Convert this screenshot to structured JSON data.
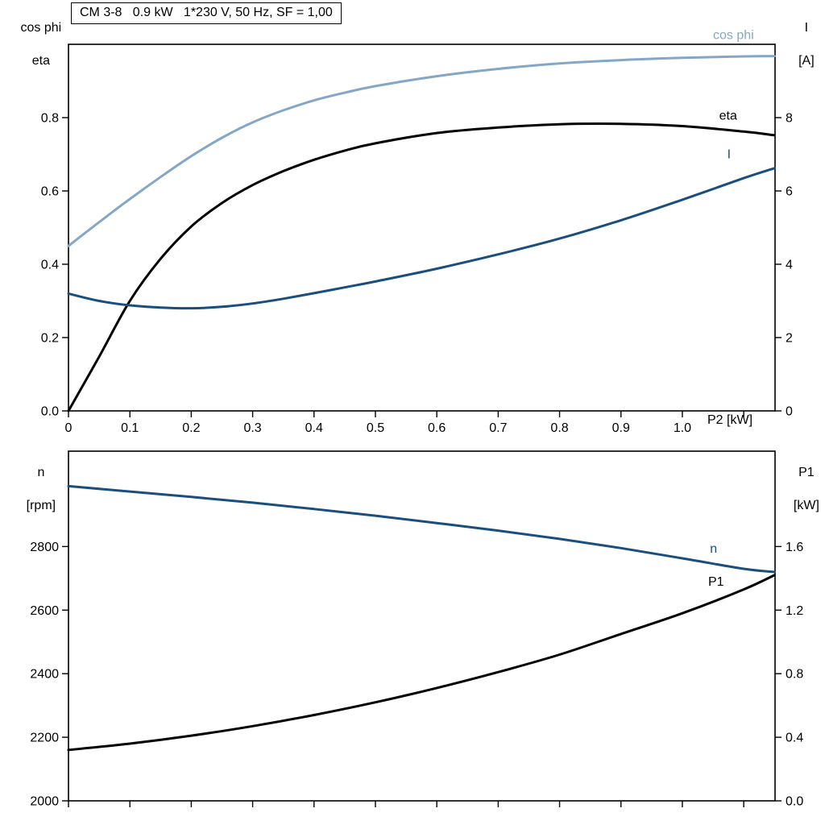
{
  "title": "CM 3-8   0.9 kW   1*230 V, 50 Hz, SF = 1,00",
  "colors": {
    "light_blue": "#84A7C7",
    "dark_blue": "#1A4E7E",
    "black": "#000000",
    "axis": "#000000"
  },
  "chart_data": [
    {
      "type": "line",
      "title": "CM 3-8   0.9 kW   1*230 V, 50 Hz, SF = 1,00",
      "left_axis_label_lines": [
        "cos phi",
        "eta"
      ],
      "right_axis_label_lines": [
        "I",
        "[A]"
      ],
      "x_axis_label": "P2 [kW]",
      "xlim": [
        0,
        1.151
      ],
      "left_ylim": [
        0,
        1.0
      ],
      "right_ylim": [
        0,
        10
      ],
      "grid": false,
      "x_ticks": {
        "values": [
          0,
          0.1,
          0.2,
          0.3,
          0.4,
          0.5,
          0.6,
          0.7,
          0.8,
          0.9,
          1.0,
          1.1
        ],
        "labels": [
          "0",
          "0.1",
          "0.2",
          "0.3",
          "0.4",
          "0.5",
          "0.6",
          "0.7",
          "0.8",
          "0.9",
          "1.0",
          ""
        ]
      },
      "left_ticks": {
        "values": [
          0,
          0.2,
          0.4,
          0.6,
          0.8
        ],
        "labels": [
          "0.0",
          "0.2",
          "0.4",
          "0.6",
          "0.8"
        ]
      },
      "right_ticks": {
        "values": [
          0,
          2,
          4,
          6,
          8
        ],
        "labels": [
          "0",
          "2",
          "4",
          "6",
          "8"
        ]
      },
      "series": [
        {
          "name": "cos phi",
          "axis": "left",
          "color": "#84A7C7",
          "label": "cos phi",
          "label_x": 1.05,
          "label_y": 1.025,
          "x": [
            0,
            0.05,
            0.1,
            0.15,
            0.2,
            0.25,
            0.3,
            0.35,
            0.4,
            0.45,
            0.5,
            0.6,
            0.7,
            0.8,
            0.9,
            1.0,
            1.1,
            1.15
          ],
          "y": [
            0.45,
            0.515,
            0.578,
            0.638,
            0.695,
            0.745,
            0.787,
            0.82,
            0.847,
            0.868,
            0.886,
            0.913,
            0.933,
            0.948,
            0.957,
            0.963,
            0.967,
            0.968
          ]
        },
        {
          "name": "eta",
          "axis": "left",
          "color": "#000000",
          "label": "eta",
          "label_x": 1.06,
          "label_y": 0.805,
          "x": [
            0,
            0.05,
            0.1,
            0.15,
            0.2,
            0.25,
            0.3,
            0.35,
            0.4,
            0.45,
            0.5,
            0.6,
            0.7,
            0.8,
            0.9,
            1.0,
            1.1,
            1.15
          ],
          "y": [
            0.0,
            0.148,
            0.3,
            0.415,
            0.503,
            0.567,
            0.616,
            0.654,
            0.685,
            0.71,
            0.73,
            0.758,
            0.773,
            0.782,
            0.783,
            0.777,
            0.762,
            0.752
          ]
        },
        {
          "name": "I",
          "axis": "right",
          "color": "#1A4E7E",
          "label": "I",
          "label_x": 1.073,
          "label_y": 7.0,
          "x": [
            0,
            0.05,
            0.1,
            0.15,
            0.2,
            0.25,
            0.3,
            0.35,
            0.4,
            0.45,
            0.5,
            0.6,
            0.7,
            0.8,
            0.9,
            1.0,
            1.1,
            1.15
          ],
          "y": [
            3.2,
            3.0,
            2.88,
            2.82,
            2.8,
            2.84,
            2.93,
            3.06,
            3.21,
            3.37,
            3.53,
            3.88,
            4.27,
            4.7,
            5.2,
            5.76,
            6.35,
            6.62
          ]
        }
      ]
    },
    {
      "type": "line",
      "left_axis_label_lines": [
        "n",
        "[rpm]"
      ],
      "right_axis_label_lines": [
        "P1",
        "[kW]"
      ],
      "xlim": [
        0,
        1.151
      ],
      "left_ylim": [
        2000,
        3100
      ],
      "right_ylim": [
        0,
        2.2
      ],
      "grid": false,
      "x_ticks": {
        "values": [
          0,
          0.1,
          0.2,
          0.3,
          0.4,
          0.5,
          0.6,
          0.7,
          0.8,
          0.9,
          1.0,
          1.1
        ],
        "labels": [
          "",
          "",
          "",
          "",
          "",
          "",
          "",
          "",
          "",
          "",
          "",
          ""
        ]
      },
      "left_ticks": {
        "values": [
          2000,
          2200,
          2400,
          2600,
          2800
        ],
        "labels": [
          "2000",
          "2200",
          "2400",
          "2600",
          "2800"
        ]
      },
      "right_ticks": {
        "values": [
          0,
          0.4,
          0.8,
          1.2,
          1.6
        ],
        "labels": [
          "0.0",
          "0.4",
          "0.8",
          "1.2",
          "1.6"
        ]
      },
      "series": [
        {
          "name": "n",
          "axis": "left",
          "color": "#1A4E7E",
          "label": "n",
          "label_x": 1.045,
          "label_y": 2793,
          "x": [
            0,
            0.1,
            0.2,
            0.3,
            0.4,
            0.5,
            0.6,
            0.7,
            0.8,
            0.9,
            1.0,
            1.1,
            1.15
          ],
          "y": [
            2990,
            2973,
            2956,
            2938,
            2918,
            2897,
            2874,
            2850,
            2824,
            2795,
            2763,
            2730,
            2720
          ]
        },
        {
          "name": "P1",
          "axis": "right",
          "color": "#000000",
          "label": "P1",
          "label_x": 1.042,
          "label_y": 1.38,
          "x": [
            0,
            0.1,
            0.2,
            0.3,
            0.4,
            0.5,
            0.6,
            0.7,
            0.8,
            0.9,
            1.0,
            1.1,
            1.15
          ],
          "y": [
            0.32,
            0.36,
            0.41,
            0.47,
            0.54,
            0.62,
            0.71,
            0.81,
            0.92,
            1.05,
            1.18,
            1.33,
            1.42
          ]
        }
      ]
    }
  ]
}
